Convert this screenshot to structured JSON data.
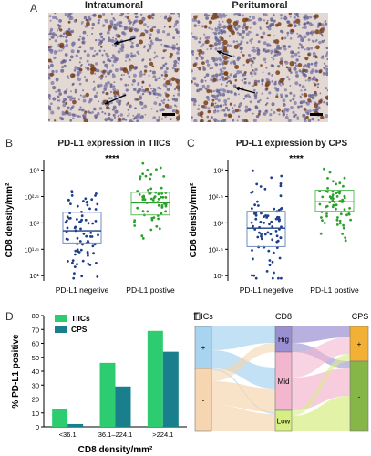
{
  "panels": {
    "a": {
      "letter": "A",
      "left_title": "Intratumoral",
      "right_title": "Peritumoral"
    },
    "b": {
      "letter": "B",
      "title": "PD-L1 expression in TIICs",
      "sig": "****"
    },
    "c": {
      "letter": "C",
      "title": "PD-L1 expression by CPS",
      "sig": "****"
    },
    "d": {
      "letter": "D"
    },
    "e": {
      "letter": "E"
    }
  },
  "chart_data": [
    {
      "id": "B",
      "type": "box",
      "title": "PD-L1 expression in TIICs",
      "ylabel": "CD8 density/mm²",
      "y_scale": "log10",
      "ylim": [
        0.9,
        3.2
      ],
      "yticks": [
        "10¹",
        "10¹·⁵",
        "10²",
        "10²·⁵",
        "10³"
      ],
      "ytick_values": [
        1,
        1.5,
        2,
        2.5,
        3
      ],
      "categories": [
        "PD-L1 negetive",
        "PD-L1 postive"
      ],
      "colors": [
        "#1f3f8a",
        "#2ca02c"
      ],
      "boxes_log10": [
        {
          "q1": 1.62,
          "median": 1.85,
          "q3": 2.2,
          "min": 0.95,
          "max": 3.1
        },
        {
          "q1": 2.15,
          "median": 2.38,
          "q3": 2.58,
          "min": 1.05,
          "max": 3.2
        }
      ],
      "significance": "****"
    },
    {
      "id": "C",
      "type": "box",
      "title": "PD-L1 expression by CPS",
      "ylabel": "CD8 density/mm²",
      "y_scale": "log10",
      "ylim": [
        0.9,
        3.2
      ],
      "yticks": [
        "10¹",
        "10¹·⁵",
        "10²",
        "10²·⁵",
        "10³"
      ],
      "ytick_values": [
        1,
        1.5,
        2,
        2.5,
        3
      ],
      "categories": [
        "PD-L1 negetive",
        "PD-L1 postive"
      ],
      "colors": [
        "#1f3f8a",
        "#2ca02c"
      ],
      "boxes_log10": [
        {
          "q1": 1.55,
          "median": 1.9,
          "q3": 2.22,
          "min": 0.95,
          "max": 3.1
        },
        {
          "q1": 2.22,
          "median": 2.4,
          "q3": 2.62,
          "min": 1.2,
          "max": 3.15
        }
      ],
      "significance": "****"
    },
    {
      "id": "D",
      "type": "bar",
      "ylabel": "% PD-L1 positive",
      "xlabel": "CD8 density/mm²",
      "ylim": [
        0,
        80
      ],
      "yticks": [
        0,
        10,
        20,
        30,
        40,
        50,
        60,
        70,
        80
      ],
      "categories": [
        "<36.1",
        "36.1–224.1",
        ">224.1"
      ],
      "series": [
        {
          "name": "TIICs",
          "color": "#2ecc71",
          "values": [
            13,
            46,
            69
          ]
        },
        {
          "name": "CPS",
          "color": "#1a7f8c",
          "values": [
            2,
            29,
            54
          ]
        }
      ],
      "legend": "top-left"
    }
  ],
  "sankey": {
    "left_title": "TIICs",
    "mid_title": "CD8",
    "right_title": "CPS",
    "left_nodes": [
      "+",
      "-"
    ],
    "mid_nodes": [
      "Hig",
      "Mid",
      "Low"
    ],
    "right_nodes": [
      "+",
      "-"
    ],
    "colors": {
      "plus_left": "#a9d4f0",
      "minus_left": "#f5d6b0",
      "hig": "#9a8fd0",
      "mid": "#f3b6cf",
      "low": "#d6ee83",
      "plus_right": "#f2b134",
      "minus_right": "#86b548"
    }
  }
}
